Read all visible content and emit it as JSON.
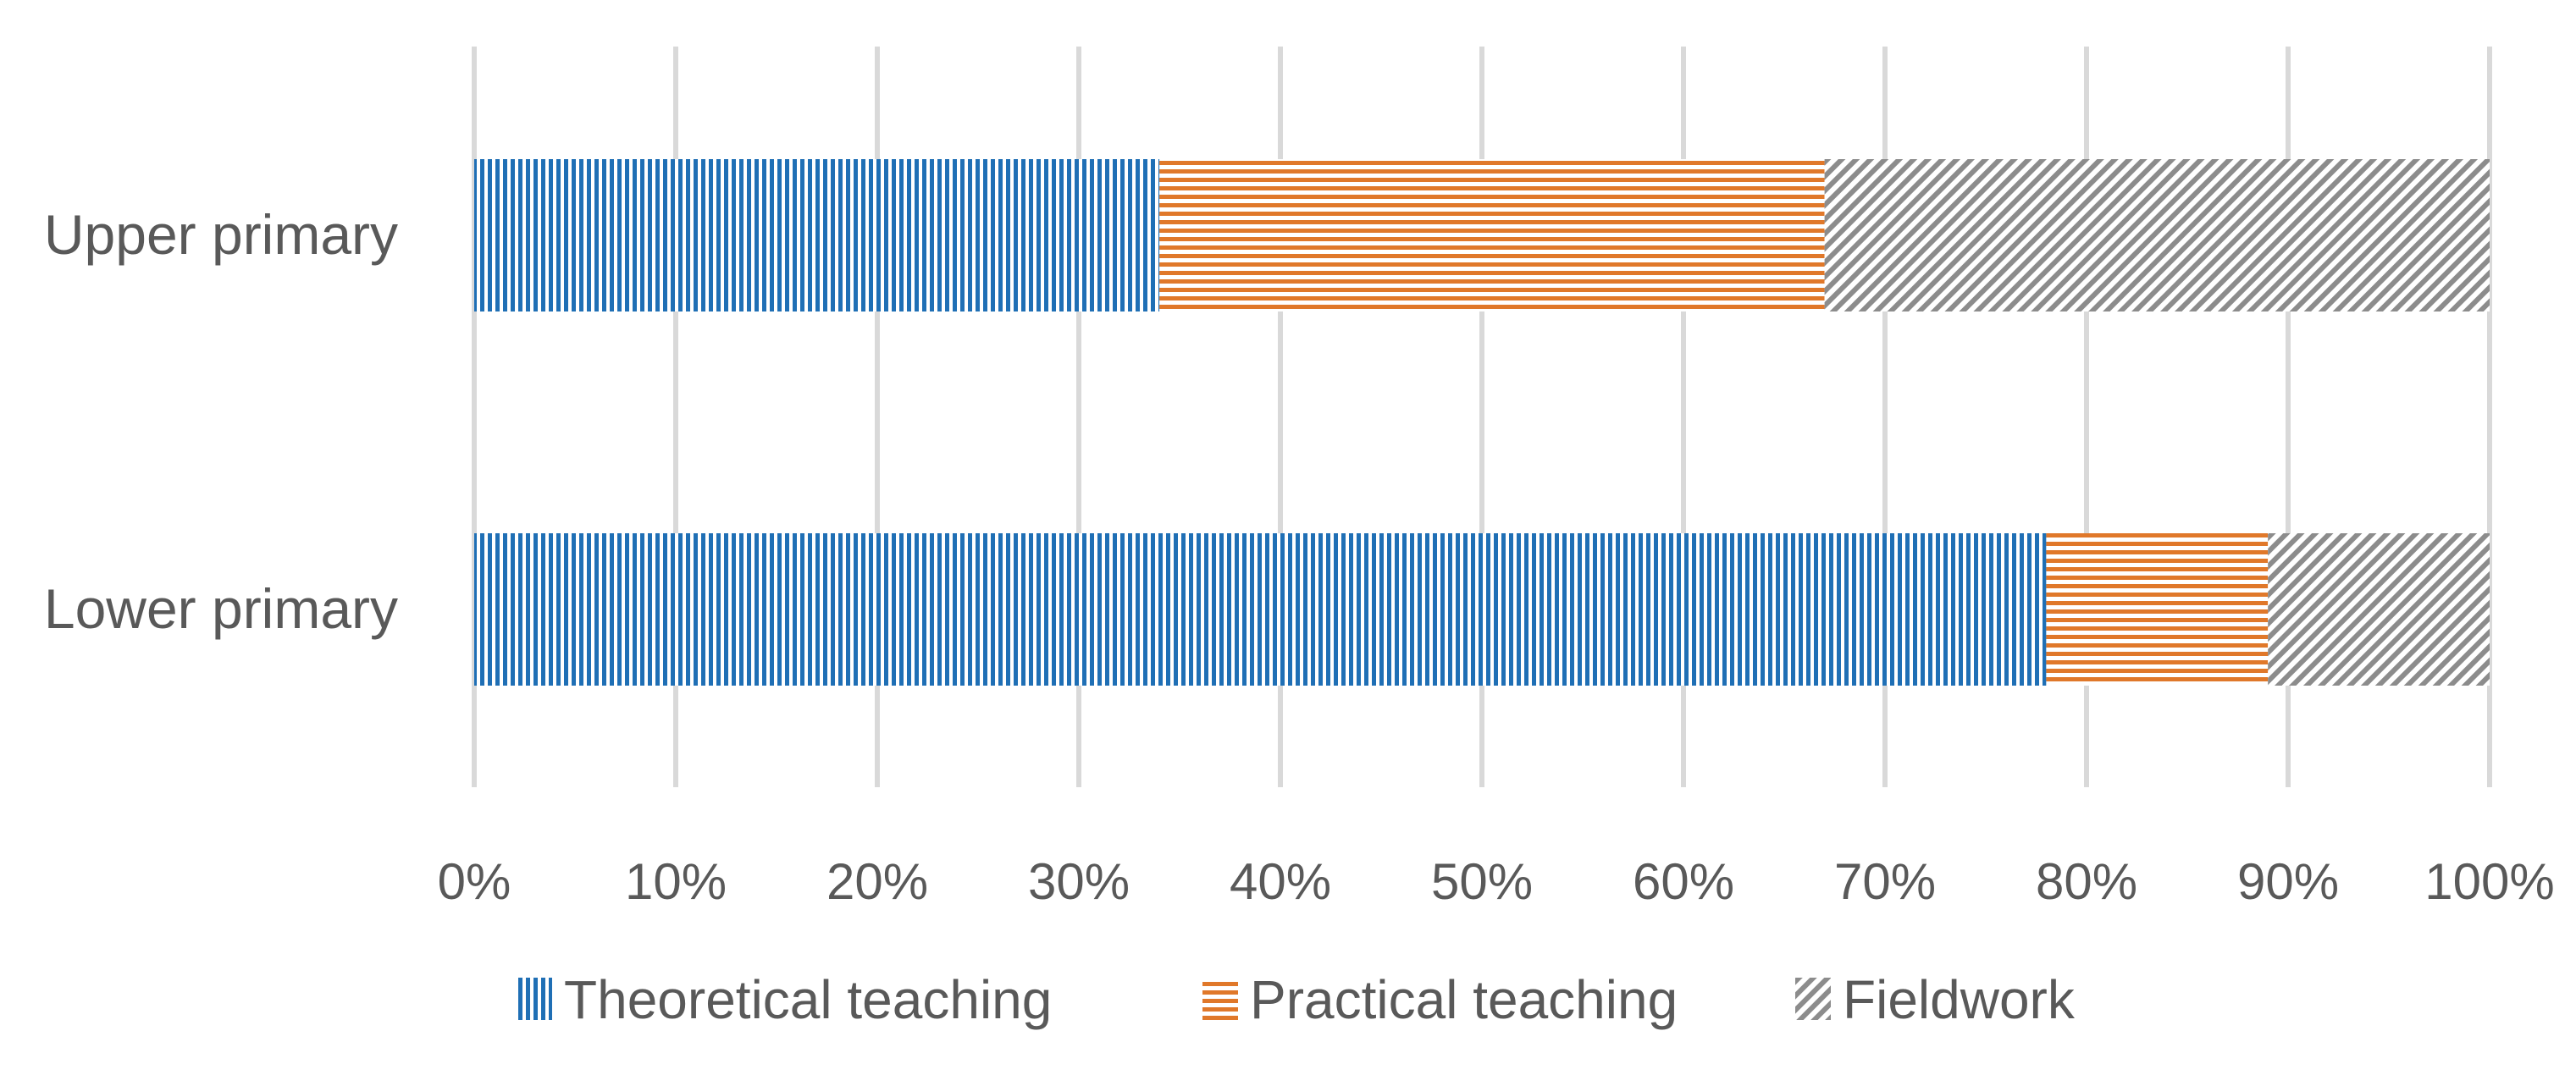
{
  "chart_data": {
    "type": "bar",
    "orientation": "horizontal",
    "stacked": "percent",
    "categories": [
      "Upper primary",
      "Lower primary"
    ],
    "series": [
      {
        "name": "Theoretical teaching",
        "values": [
          34,
          78
        ],
        "color": "#1f6fb5",
        "pattern": "vertical-lines"
      },
      {
        "name": "Practical teaching",
        "values": [
          33,
          11
        ],
        "color": "#e0782a",
        "pattern": "horizontal-lines"
      },
      {
        "name": "Fieldwork",
        "values": [
          33,
          11
        ],
        "color": "#8c8c8c",
        "pattern": "diagonal-lines"
      }
    ],
    "x_ticks": [
      "0%",
      "10%",
      "20%",
      "30%",
      "40%",
      "50%",
      "60%",
      "70%",
      "80%",
      "90%",
      "100%"
    ],
    "xlim": [
      0,
      100
    ],
    "grid": true,
    "legend_position": "bottom"
  }
}
